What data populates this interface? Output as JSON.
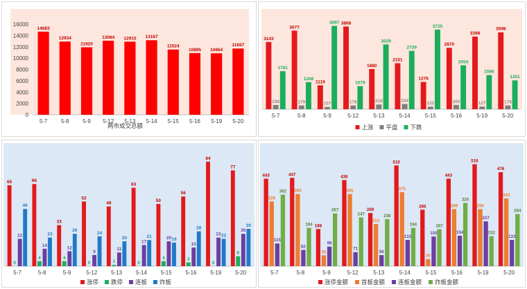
{
  "chart_data": [
    {
      "type": "bar",
      "title": "",
      "categories": [
        "5-7",
        "5-8",
        "5-9",
        "5-12",
        "5-13",
        "5-14",
        "5-15",
        "5-16",
        "5-19",
        "5-20"
      ],
      "series": [
        {
          "name": "",
          "values": [
            14683,
            12934,
            11920,
            13084,
            12915,
            13167,
            11524,
            10895,
            10864,
            11697
          ],
          "color": "#ff0000"
        }
      ],
      "legend_text": "两市成交总额",
      "ylim": [
        0,
        16000
      ],
      "yticks": [
        "0",
        "2000",
        "4000",
        "6000",
        "8000",
        "10000",
        "12000",
        "14000",
        "16000"
      ],
      "plot_background": "#fde6dd",
      "data_label_color": "#c00000"
    },
    {
      "type": "bar",
      "categories": [
        "5-7",
        "5-8",
        "5-9",
        "5-12",
        "5-13",
        "5-14",
        "5-15",
        "5-16",
        "5-19",
        "5-20"
      ],
      "series": [
        {
          "name": "上涨",
          "values": [
            3143,
            3677,
            1119,
            3868,
            1880,
            2151,
            1276,
            2870,
            3398,
            3598
          ],
          "color": "#e31a1c"
        },
        {
          "name": "平盘",
          "values": [
            198,
            179,
            107,
            178,
            219,
            244,
            122,
            200,
            127,
            178
          ],
          "color": "#7f7f7f"
        },
        {
          "name": "下跌",
          "values": [
            1781,
            1268,
            3897,
            1079,
            3029,
            2729,
            3725,
            2054,
            1596,
            1351
          ],
          "color": "#1aae5c"
        }
      ],
      "ylim": [
        0,
        4300
      ],
      "legend_position": "bottom",
      "plot_background": "#fde6dd",
      "label_colors": [
        "#c00000",
        "#8c8c8c",
        "#1aae5c"
      ]
    },
    {
      "type": "bar",
      "categories": [
        "5-7",
        "5-8",
        "5-9",
        "5-12",
        "5-13",
        "5-14",
        "5-15",
        "5-16",
        "5-19",
        "5-20"
      ],
      "series": [
        {
          "name": "涨停",
          "values": [
            65,
            66,
            33,
            52,
            48,
            63,
            50,
            56,
            84,
            77
          ],
          "color": "#e31a1c"
        },
        {
          "name": "跌停",
          "values": [
            0,
            4,
            4,
            0,
            1,
            0,
            4,
            3,
            0,
            8
          ],
          "color": "#1aae5c"
        },
        {
          "name": "连板",
          "values": [
            22,
            14,
            12,
            9,
            11,
            17,
            20,
            15,
            23,
            26
          ],
          "color": "#6b3fa0"
        },
        {
          "name": "炸板",
          "values": [
            46,
            23,
            26,
            24,
            20,
            21,
            19,
            28,
            22,
            30
          ],
          "color": "#1f7bc9"
        }
      ],
      "ylim": [
        0,
        90
      ],
      "legend_position": "bottom",
      "plot_background": "#dce8f5",
      "label_colors": [
        "#c00000",
        "#1aae5c",
        "#6b3fa0",
        "#1f7bc9"
      ]
    },
    {
      "type": "bar",
      "categories": [
        "5-7",
        "5-8",
        "5-9",
        "5-12",
        "5-13",
        "5-14",
        "5-15",
        "5-16",
        "5-19",
        "5-20"
      ],
      "series": [
        {
          "name": "涨停金额",
          "values": [
            443,
            447,
            188,
            436,
            269,
            510,
            286,
            443,
            516,
            476
          ],
          "color": "#e31a1c"
        },
        {
          "name": "首板金额",
          "values": [
            328,
            365,
            55,
            365,
            213,
            375,
            36,
            289,
            289,
            343
          ],
          "color": "#ed7d31"
        },
        {
          "name": "连板金额",
          "values": [
            115,
            82,
            99,
            71,
            56,
            133,
            150,
            154,
            227,
            133
          ],
          "color": "#6b3fa0"
        },
        {
          "name": "炸板金额",
          "values": [
            362,
            194,
            267,
            247,
            238,
            194,
            187,
            320,
            152,
            264
          ],
          "color": "#70ad47"
        }
      ],
      "ylim": [
        0,
        560
      ],
      "legend_position": "bottom",
      "plot_background": "#dce8f5",
      "label_colors": [
        "#c00000",
        "#ed7d31",
        "#6b3fa0",
        "#548235"
      ]
    }
  ]
}
